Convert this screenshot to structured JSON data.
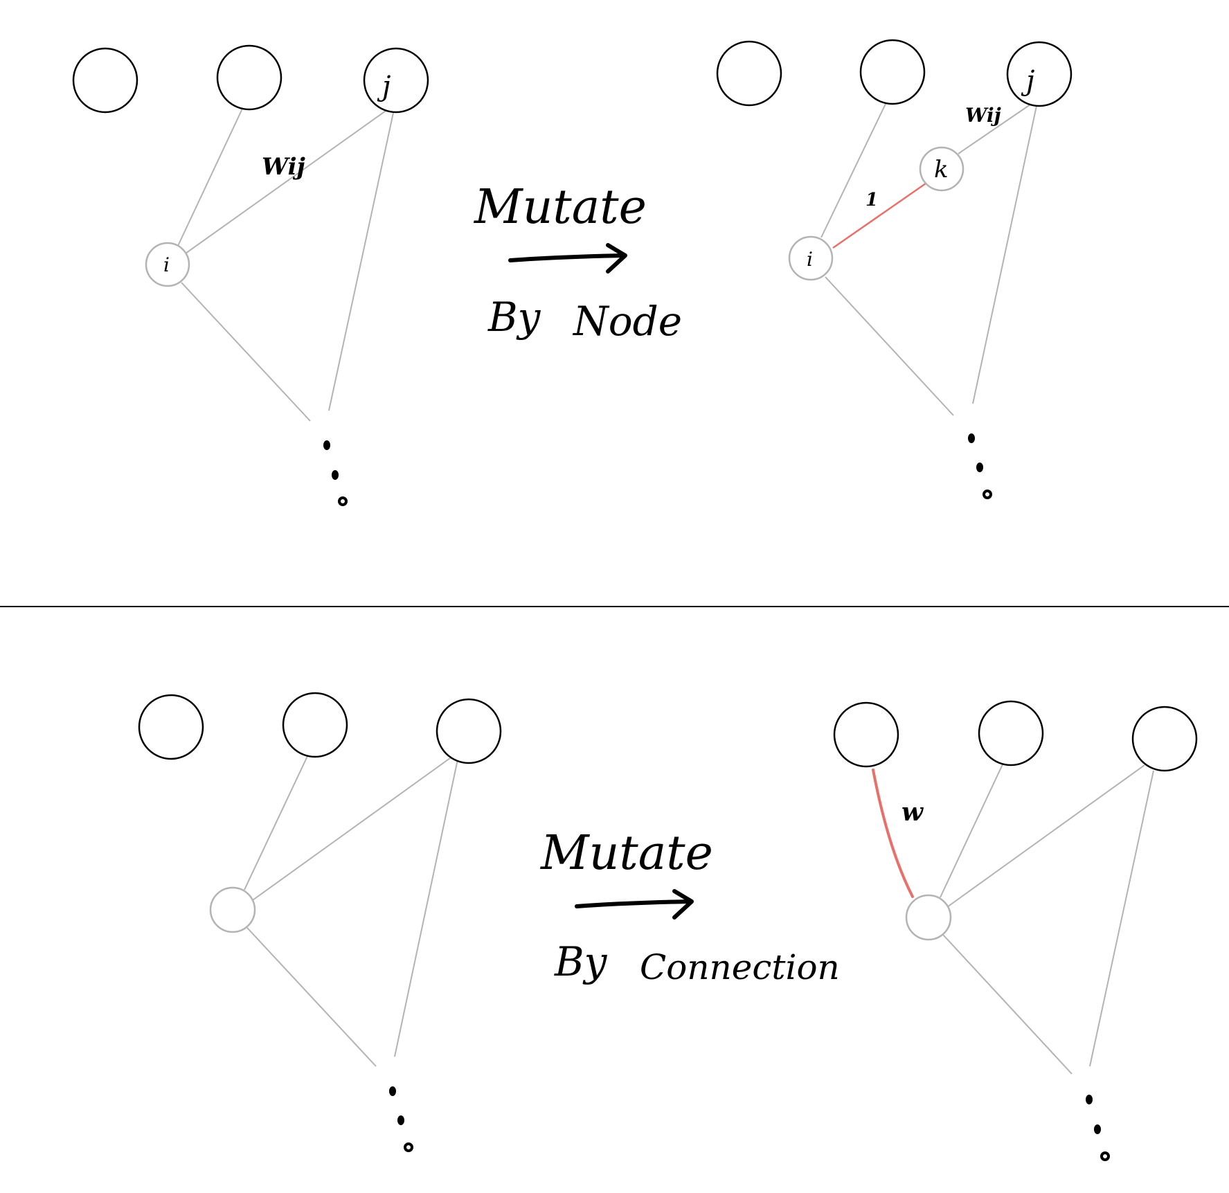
{
  "colors": {
    "ink": "#000000",
    "edge_gray": "#b3b3b3",
    "node_gray": "#b3b3b3",
    "new_edge_red": "#e8706a",
    "background": "#ffffff"
  },
  "top_panel": {
    "left_graph": {
      "node_i_label": "i",
      "node_j_label": "j",
      "edge_weight_label": "Wij"
    },
    "transform": {
      "verb": "Mutate",
      "by": "By",
      "kind": "Node"
    },
    "right_graph": {
      "node_i_label": "i",
      "node_j_label": "j",
      "node_k_label": "k",
      "edge_weight_label": "Wij",
      "new_edge_weight_label": "1"
    }
  },
  "bottom_panel": {
    "transform": {
      "verb": "Mutate",
      "by": "By",
      "kind": "Connection"
    },
    "right_graph": {
      "new_edge_weight_label": "w"
    }
  }
}
